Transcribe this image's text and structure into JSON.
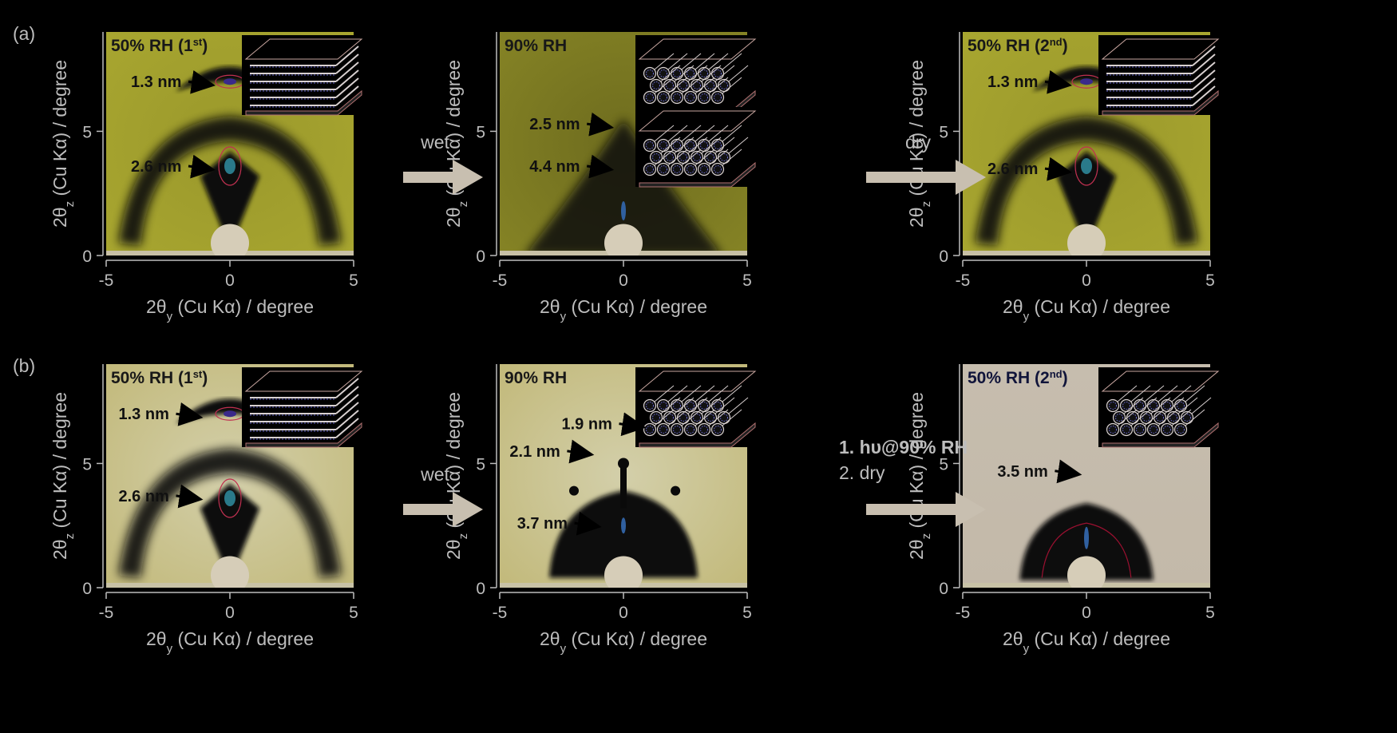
{
  "rows": [
    {
      "label": "(a)",
      "arrows": [
        {
          "lines": [
            "wet"
          ]
        },
        {
          "lines": [
            "dry"
          ]
        }
      ],
      "panels": [
        {
          "title_main": "50% RH (1",
          "title_sup": "st",
          "title_end": ")",
          "style": "olive",
          "inset": "layers",
          "annotations": [
            {
              "text": "1.3 nm",
              "y": 7.0,
              "x": -4.0
            },
            {
              "text": "2.6 nm",
              "y": 3.6,
              "x": -4.0
            }
          ],
          "features": [
            "arc_top",
            "arc_mid",
            "dot_y7",
            "dot_y36"
          ]
        },
        {
          "title_main": "90% RH",
          "title_sup": "",
          "title_end": "",
          "style": "olive_dark",
          "inset": "tubes_double",
          "annotations": [
            {
              "text": "2.5 nm",
              "y": 5.3,
              "x": -3.8
            },
            {
              "text": "4.4 nm",
              "y": 3.6,
              "x": -3.8
            }
          ],
          "features": [
            "dome"
          ]
        },
        {
          "title_main": "50% RH (2",
          "title_sup": "nd",
          "title_end": ")",
          "style": "olive",
          "inset": "layers",
          "annotations": [
            {
              "text": "1.3 nm",
              "y": 7.0,
              "x": -4.0
            },
            {
              "text": "2.6 nm",
              "y": 3.5,
              "x": -4.0
            }
          ],
          "features": [
            "arc_top",
            "arc_mid",
            "dot_y7",
            "dot_y36"
          ]
        }
      ]
    },
    {
      "label": "(b)",
      "arrows": [
        {
          "lines": [
            "wet"
          ]
        },
        {
          "lines": [
            "1. hυ@90% RH",
            "2. dry"
          ]
        }
      ],
      "panels": [
        {
          "title_main": "50% RH (1",
          "title_sup": "st",
          "title_end": ")",
          "style": "pale",
          "inset": "layers",
          "annotations": [
            {
              "text": "1.3 nm",
              "y": 7.0,
              "x": -4.5
            },
            {
              "text": "2.6 nm",
              "y": 3.7,
              "x": -4.5
            }
          ],
          "features": [
            "arc_top",
            "arc_mid",
            "dot_y7",
            "dot_y36"
          ]
        },
        {
          "title_main": "90% RH",
          "title_sup": "",
          "title_end": "",
          "style": "pale",
          "inset": "tubes",
          "annotations": [
            {
              "text": "1.9 nm",
              "y": 6.6,
              "x": -2.5
            },
            {
              "text": "2.1 nm",
              "y": 5.5,
              "x": -4.6
            },
            {
              "text": "3.7 nm",
              "y": 2.6,
              "x": -4.3
            }
          ],
          "features": [
            "dome_big",
            "spots"
          ]
        },
        {
          "title_main": "50% RH (2",
          "title_sup": "nd",
          "title_end": ")",
          "style": "gray",
          "inset": "tubes",
          "annotations": [
            {
              "text": "3.5 nm",
              "y": 4.7,
              "x": -3.6
            }
          ],
          "features": [
            "dome_small"
          ]
        }
      ]
    }
  ],
  "axes": {
    "xlabel_prefix": "2θ",
    "xlabel_sub": "y",
    "xlabel_suffix": " (Cu Kα) / degree",
    "ylabel_prefix": "2θ",
    "ylabel_sub": "z",
    "ylabel_suffix": " (Cu Kα) / degree",
    "xticks": [
      "-5",
      "0",
      "5"
    ],
    "yticks": [
      "0",
      "5"
    ],
    "xlim": [
      -5,
      5
    ],
    "ylim": [
      0,
      9
    ]
  },
  "colors": {
    "olive": "#a6a42f",
    "olive_dark": "#7f7d22",
    "pale": "#c8c293",
    "gray": "#c6bcae",
    "arrow": "#c8bfb0",
    "text": "#bdbdbd",
    "title_dark": "#181818",
    "title_navy": "#10143a"
  }
}
